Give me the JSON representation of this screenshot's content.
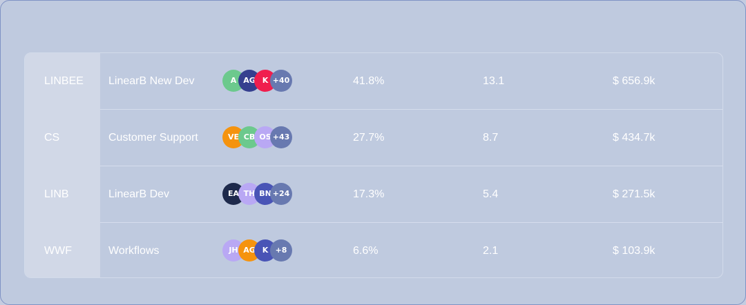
{
  "colors": {
    "green": "#6cc98d",
    "navy": "#353f8f",
    "red": "#f01e4e",
    "slate": "#6879b0",
    "orange": "#f5930e",
    "lavender": "#b9a8f4",
    "darknavy": "#1e2a4c",
    "indigo": "#4954b6"
  },
  "rows": [
    {
      "key": "LINBEE",
      "name": "LinearB New Dev",
      "avatars": [
        {
          "initials": "A",
          "color": "#6cc98d"
        },
        {
          "initials": "AG",
          "color": "#353f8f"
        },
        {
          "initials": "K",
          "color": "#f01e4e"
        },
        {
          "initials": "+40",
          "color": "#6879b0"
        }
      ],
      "pct": "41.8%",
      "num": "13.1",
      "cost": "$ 656.9k"
    },
    {
      "key": "CS",
      "name": "Customer Support",
      "avatars": [
        {
          "initials": "VE",
          "color": "#f5930e"
        },
        {
          "initials": "CB",
          "color": "#6cc98d"
        },
        {
          "initials": "OS",
          "color": "#b9a8f4"
        },
        {
          "initials": "+43",
          "color": "#6879b0"
        }
      ],
      "pct": "27.7%",
      "num": "8.7",
      "cost": "$ 434.7k"
    },
    {
      "key": "LINB",
      "name": "LinearB Dev",
      "avatars": [
        {
          "initials": "EA",
          "color": "#1e2a4c"
        },
        {
          "initials": "TH",
          "color": "#b9a8f4"
        },
        {
          "initials": "BN",
          "color": "#4954b6"
        },
        {
          "initials": "+24",
          "color": "#6879b0"
        }
      ],
      "pct": "17.3%",
      "num": "5.4",
      "cost": "$ 271.5k"
    },
    {
      "key": "WWF",
      "name": "Workflows",
      "avatars": [
        {
          "initials": "JH",
          "color": "#b9a8f4"
        },
        {
          "initials": "AG",
          "color": "#f5930e"
        },
        {
          "initials": "K",
          "color": "#4954b6"
        },
        {
          "initials": "+8",
          "color": "#6879b0"
        }
      ],
      "pct": "6.6%",
      "num": "2.1",
      "cost": "$ 103.9k"
    }
  ]
}
